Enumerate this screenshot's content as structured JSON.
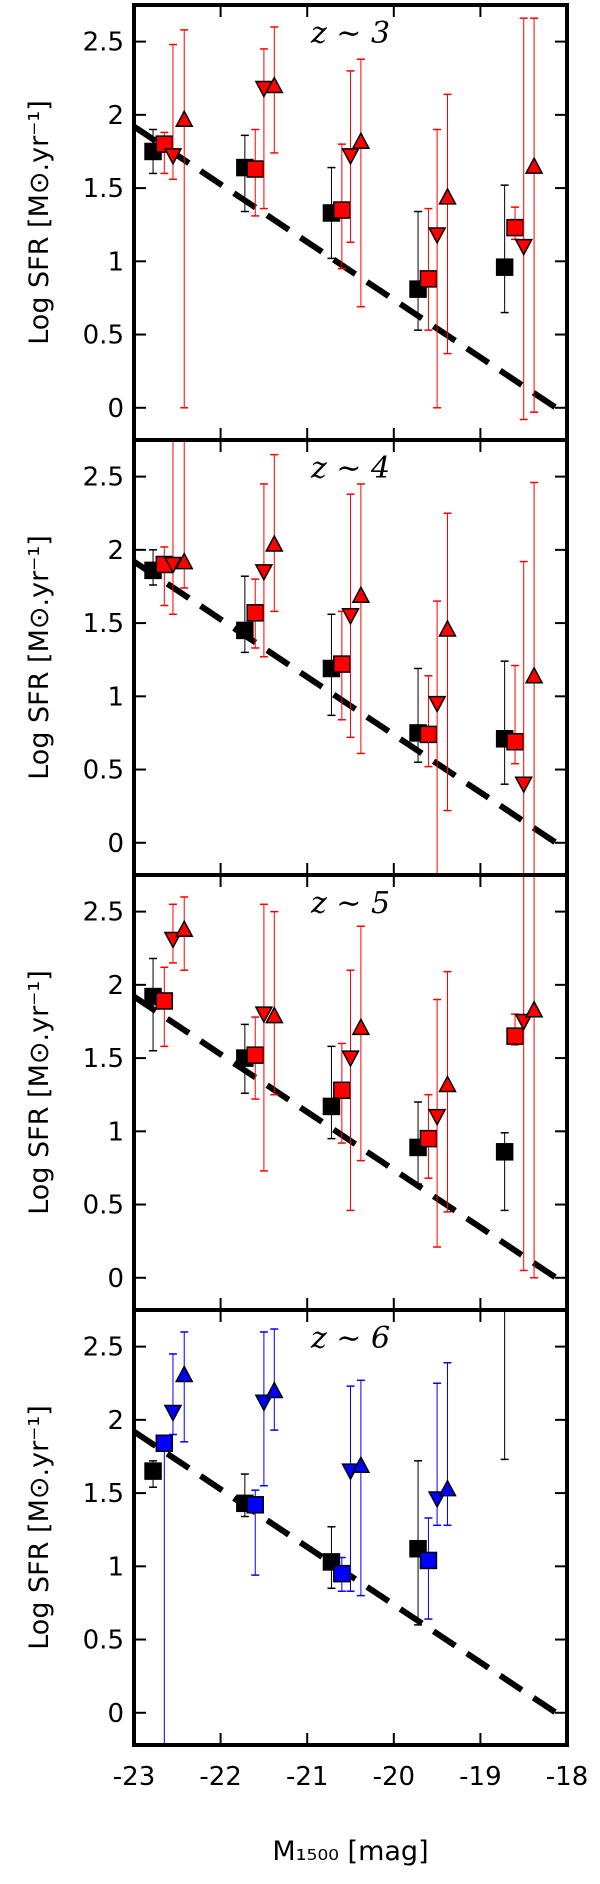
{
  "chart_data": [
    {
      "type": "scatter",
      "panel_label": "z ∼ 3",
      "ylabel": "Log SFR [M⊙.yr⁻¹]",
      "xlim": [
        -23,
        -18
      ],
      "ylim": [
        -0.22,
        2.75
      ],
      "yticks": [
        "0",
        "0.5",
        "1",
        "1.5",
        "2",
        "2.5"
      ],
      "accent": "#ff0000",
      "series": [
        {
          "marker": "square",
          "color": "#000000",
          "points": [
            {
              "x": -22.78,
              "y": 1.75,
              "lo": 1.6,
              "hi": 1.9
            },
            {
              "x": -21.72,
              "y": 1.64,
              "lo": 1.34,
              "hi": 1.86
            },
            {
              "x": -20.72,
              "y": 1.33,
              "lo": 1.02,
              "hi": 1.64
            },
            {
              "x": -19.72,
              "y": 0.81,
              "lo": 0.53,
              "hi": 1.34
            },
            {
              "x": -18.72,
              "y": 0.96,
              "lo": 0.65,
              "hi": 1.52
            }
          ]
        },
        {
          "marker": "square",
          "color": "#ff0000",
          "points": [
            {
              "x": -22.65,
              "y": 1.8,
              "lo": 1.6,
              "hi": 1.88
            },
            {
              "x": -21.6,
              "y": 1.63,
              "lo": 1.31,
              "hi": 1.9
            },
            {
              "x": -20.6,
              "y": 1.35,
              "lo": 0.95,
              "hi": 1.8
            },
            {
              "x": -19.6,
              "y": 0.88,
              "lo": 0.53,
              "hi": 1.36
            },
            {
              "x": -18.6,
              "y": 1.23,
              "lo": 1.15,
              "hi": 1.37
            }
          ]
        },
        {
          "marker": "triangle-down",
          "color": "#ff0000",
          "points": [
            {
              "x": -22.55,
              "y": 1.72,
              "lo": 1.56,
              "hi": 2.48
            },
            {
              "x": -21.5,
              "y": 2.18,
              "lo": 1.36,
              "hi": 2.45
            },
            {
              "x": -20.5,
              "y": 1.72,
              "lo": 1.13,
              "hi": 2.3
            },
            {
              "x": -19.5,
              "y": 1.18,
              "lo": 0.0,
              "hi": 1.9
            },
            {
              "x": -18.5,
              "y": 1.1,
              "lo": -0.08,
              "hi": 2.66
            }
          ]
        },
        {
          "marker": "triangle-up",
          "color": "#ff0000",
          "points": [
            {
              "x": -22.42,
              "y": 1.97,
              "lo": 0.0,
              "hi": 2.58
            },
            {
              "x": -21.38,
              "y": 2.2,
              "lo": 1.74,
              "hi": 2.6
            },
            {
              "x": -20.38,
              "y": 1.82,
              "lo": 0.69,
              "hi": 2.38
            },
            {
              "x": -19.38,
              "y": 1.44,
              "lo": 0.37,
              "hi": 2.14
            },
            {
              "x": -18.38,
              "y": 1.65,
              "lo": -0.03,
              "hi": 2.66
            }
          ]
        }
      ]
    },
    {
      "type": "scatter",
      "panel_label": "z ∼ 4",
      "ylabel": "Log SFR [M⊙.yr⁻¹]",
      "xlim": [
        -23,
        -18
      ],
      "ylim": [
        -0.22,
        2.75
      ],
      "yticks": [
        "0",
        "0.5",
        "1",
        "1.5",
        "2",
        "2.5"
      ],
      "accent": "#ff0000",
      "series": [
        {
          "marker": "square",
          "color": "#000000",
          "points": [
            {
              "x": -22.78,
              "y": 1.86,
              "lo": 1.76,
              "hi": 2.0
            },
            {
              "x": -21.72,
              "y": 1.45,
              "lo": 1.3,
              "hi": 1.82
            },
            {
              "x": -20.72,
              "y": 1.19,
              "lo": 0.87,
              "hi": 1.56
            },
            {
              "x": -19.72,
              "y": 0.75,
              "lo": 0.55,
              "hi": 1.19
            },
            {
              "x": -18.72,
              "y": 0.71,
              "lo": 0.4,
              "hi": 1.24
            }
          ]
        },
        {
          "marker": "square",
          "color": "#ff0000",
          "points": [
            {
              "x": -22.65,
              "y": 1.9,
              "lo": 1.62,
              "hi": 2.02
            },
            {
              "x": -21.6,
              "y": 1.57,
              "lo": 1.33,
              "hi": 1.8
            },
            {
              "x": -20.6,
              "y": 1.22,
              "lo": 0.84,
              "hi": 1.58
            },
            {
              "x": -19.6,
              "y": 0.74,
              "lo": 0.52,
              "hi": 1.14
            },
            {
              "x": -18.6,
              "y": 0.69,
              "lo": 0.54,
              "hi": 1.21
            }
          ]
        },
        {
          "marker": "triangle-down",
          "color": "#ff0000",
          "points": [
            {
              "x": -22.55,
              "y": 1.9,
              "lo": 1.56,
              "hi": 2.75
            },
            {
              "x": -21.5,
              "y": 1.85,
              "lo": 1.27,
              "hi": 2.45
            },
            {
              "x": -20.5,
              "y": 1.55,
              "lo": 0.72,
              "hi": 2.38
            },
            {
              "x": -19.5,
              "y": 0.95,
              "lo": -0.22,
              "hi": 1.65
            },
            {
              "x": -18.5,
              "y": 0.4,
              "lo": -0.22,
              "hi": 1.92
            }
          ]
        },
        {
          "marker": "triangle-up",
          "color": "#ff0000",
          "points": [
            {
              "x": -22.42,
              "y": 1.92,
              "lo": 1.74,
              "hi": 2.75
            },
            {
              "x": -21.38,
              "y": 2.04,
              "lo": 1.58,
              "hi": 2.65
            },
            {
              "x": -20.38,
              "y": 1.69,
              "lo": 0.61,
              "hi": 2.45
            },
            {
              "x": -19.38,
              "y": 1.46,
              "lo": 0.22,
              "hi": 2.25
            },
            {
              "x": -18.38,
              "y": 1.14,
              "lo": -0.22,
              "hi": 2.46
            }
          ]
        }
      ]
    },
    {
      "type": "scatter",
      "panel_label": "z ∼ 5",
      "ylabel": "Log SFR [M⊙.yr⁻¹]",
      "xlim": [
        -23,
        -18
      ],
      "ylim": [
        -0.22,
        2.75
      ],
      "yticks": [
        "0",
        "0.5",
        "1",
        "1.5",
        "2",
        "2.5"
      ],
      "accent": "#ff0000",
      "series": [
        {
          "marker": "square",
          "color": "#000000",
          "points": [
            {
              "x": -22.78,
              "y": 1.92,
              "lo": 1.55,
              "hi": 2.18
            },
            {
              "x": -21.72,
              "y": 1.5,
              "lo": 1.26,
              "hi": 1.73
            },
            {
              "x": -20.72,
              "y": 1.17,
              "lo": 0.95,
              "hi": 1.58
            },
            {
              "x": -19.72,
              "y": 0.89,
              "lo": 0.64,
              "hi": 1.2
            },
            {
              "x": -18.72,
              "y": 0.86,
              "lo": 0.46,
              "hi": 0.99
            }
          ]
        },
        {
          "marker": "square",
          "color": "#ff0000",
          "points": [
            {
              "x": -22.65,
              "y": 1.89,
              "lo": 1.58,
              "hi": 2.12
            },
            {
              "x": -21.6,
              "y": 1.52,
              "lo": 1.22,
              "hi": 1.78
            },
            {
              "x": -20.6,
              "y": 1.28,
              "lo": 0.92,
              "hi": 1.6
            },
            {
              "x": -19.6,
              "y": 0.95,
              "lo": 0.68,
              "hi": 1.25
            },
            {
              "x": -18.6,
              "y": 1.65,
              "lo": 1.59,
              "hi": 1.8
            }
          ]
        },
        {
          "marker": "triangle-down",
          "color": "#ff0000",
          "points": [
            {
              "x": -22.55,
              "y": 2.31,
              "lo": 2.15,
              "hi": 2.55
            },
            {
              "x": -21.5,
              "y": 1.8,
              "lo": 0.73,
              "hi": 2.55
            },
            {
              "x": -20.5,
              "y": 1.5,
              "lo": 0.46,
              "hi": 2.1
            },
            {
              "x": -19.5,
              "y": 1.1,
              "lo": 0.21,
              "hi": 1.9
            },
            {
              "x": -18.5,
              "y": 1.75,
              "lo": 0.05,
              "hi": 2.75
            }
          ]
        },
        {
          "marker": "triangle-up",
          "color": "#ff0000",
          "points": [
            {
              "x": -22.42,
              "y": 2.38,
              "lo": 2.1,
              "hi": 2.6
            },
            {
              "x": -21.38,
              "y": 1.79,
              "lo": 1.25,
              "hi": 2.5
            },
            {
              "x": -20.38,
              "y": 1.71,
              "lo": 0.8,
              "hi": 2.4
            },
            {
              "x": -19.38,
              "y": 1.32,
              "lo": 0.45,
              "hi": 2.09
            },
            {
              "x": -18.38,
              "y": 1.83,
              "lo": 0.0,
              "hi": 2.75
            }
          ]
        }
      ]
    },
    {
      "type": "scatter",
      "panel_label": "z ∼ 6",
      "ylabel": "Log SFR [M⊙.yr⁻¹]",
      "xlabel": "M₁₅₀₀ [mag]",
      "xlim": [
        -23,
        -18
      ],
      "ylim": [
        -0.22,
        2.75
      ],
      "xticks": [
        "-23",
        "-22",
        "-21",
        "-20",
        "-19",
        "-18"
      ],
      "yticks": [
        "0",
        "0.5",
        "1",
        "1.5",
        "2",
        "2.5"
      ],
      "accent": "#0000ff",
      "series": [
        {
          "marker": "square",
          "color": "#000000",
          "points": [
            {
              "x": -22.78,
              "y": 1.65,
              "lo": 1.54,
              "hi": 1.72
            },
            {
              "x": -21.72,
              "y": 1.43,
              "lo": 1.34,
              "hi": 1.63
            },
            {
              "x": -20.72,
              "y": 1.03,
              "lo": 0.85,
              "hi": 1.27
            },
            {
              "x": -19.72,
              "y": 1.12,
              "lo": 0.6,
              "hi": 1.72
            },
            {
              "x": -18.72,
              "y": null,
              "lo": 1.73,
              "hi": 2.75
            }
          ]
        },
        {
          "marker": "square",
          "color": "#0000ff",
          "points": [
            {
              "x": -22.65,
              "y": 1.84,
              "lo": -0.22,
              "hi": 1.84
            },
            {
              "x": -21.6,
              "y": 1.42,
              "lo": 0.94,
              "hi": 1.52
            },
            {
              "x": -20.6,
              "y": 0.95,
              "lo": 0.83,
              "hi": 1.06
            },
            {
              "x": -19.6,
              "y": 1.04,
              "lo": 0.64,
              "hi": 1.33
            }
          ]
        },
        {
          "marker": "triangle-down",
          "color": "#0000ff",
          "points": [
            {
              "x": -22.55,
              "y": 2.05,
              "lo": 1.9,
              "hi": 2.45
            },
            {
              "x": -21.5,
              "y": 2.12,
              "lo": 1.55,
              "hi": 2.6
            },
            {
              "x": -20.5,
              "y": 1.65,
              "lo": 0.83,
              "hi": 2.23
            },
            {
              "x": -19.5,
              "y": 1.46,
              "lo": 1.28,
              "hi": 2.25
            }
          ]
        },
        {
          "marker": "triangle-up",
          "color": "#0000ff",
          "points": [
            {
              "x": -22.42,
              "y": 2.31,
              "lo": 1.85,
              "hi": 2.6
            },
            {
              "x": -21.38,
              "y": 2.2,
              "lo": 1.93,
              "hi": 2.62
            },
            {
              "x": -20.38,
              "y": 1.69,
              "lo": 0.8,
              "hi": 2.27
            },
            {
              "x": -19.38,
              "y": 1.53,
              "lo": 1.28,
              "hi": 2.39
            }
          ]
        }
      ]
    }
  ]
}
